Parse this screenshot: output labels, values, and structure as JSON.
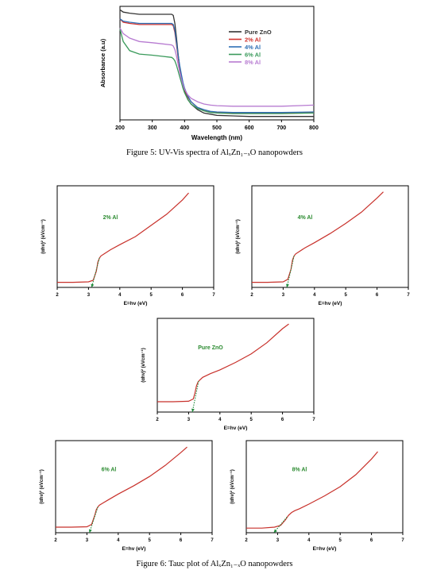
{
  "figure5": {
    "caption": "Figure 5: UV-Vis spectra of AlₓZn₁₋ₓO nanopowders",
    "chart_data": {
      "type": "line",
      "title": "",
      "xlabel": "Wavelength (nm)",
      "ylabel": "Absorbance (a.u)",
      "xlim": [
        200,
        800
      ],
      "ylim": [
        0,
        1
      ],
      "xticks": [
        "200",
        "300",
        "400",
        "500",
        "600",
        "700",
        "800"
      ],
      "grid": false,
      "legend_position": "top-right",
      "x": [
        200,
        210,
        230,
        260,
        300,
        330,
        360,
        365,
        370,
        375,
        380,
        385,
        390,
        395,
        400,
        410,
        420,
        440,
        460,
        480,
        500,
        550,
        600,
        700,
        800
      ],
      "series": [
        {
          "name": "Pure ZnO",
          "color": "#333333",
          "values": [
            0.97,
            0.95,
            0.94,
            0.93,
            0.93,
            0.93,
            0.93,
            0.92,
            0.85,
            0.72,
            0.58,
            0.46,
            0.37,
            0.3,
            0.25,
            0.18,
            0.14,
            0.09,
            0.06,
            0.05,
            0.04,
            0.035,
            0.03,
            0.03,
            0.03
          ]
        },
        {
          "name": "2% Al",
          "color": "#d0312d",
          "values": [
            0.89,
            0.86,
            0.85,
            0.84,
            0.84,
            0.84,
            0.84,
            0.83,
            0.77,
            0.66,
            0.55,
            0.46,
            0.38,
            0.32,
            0.27,
            0.2,
            0.16,
            0.11,
            0.08,
            0.07,
            0.065,
            0.06,
            0.06,
            0.06,
            0.065
          ]
        },
        {
          "name": "4% Al",
          "color": "#2d6fb5",
          "values": [
            0.89,
            0.87,
            0.86,
            0.85,
            0.85,
            0.85,
            0.85,
            0.84,
            0.79,
            0.68,
            0.57,
            0.48,
            0.4,
            0.33,
            0.28,
            0.21,
            0.16,
            0.11,
            0.09,
            0.075,
            0.07,
            0.065,
            0.065,
            0.065,
            0.07
          ]
        },
        {
          "name": "6% Al",
          "color": "#3a9a5b",
          "values": [
            0.8,
            0.69,
            0.61,
            0.58,
            0.57,
            0.56,
            0.55,
            0.54,
            0.52,
            0.48,
            0.43,
            0.38,
            0.33,
            0.28,
            0.24,
            0.18,
            0.14,
            0.1,
            0.08,
            0.065,
            0.06,
            0.055,
            0.055,
            0.055,
            0.06
          ]
        },
        {
          "name": "8% Al",
          "color": "#b77bd1",
          "values": [
            0.81,
            0.76,
            0.72,
            0.69,
            0.68,
            0.67,
            0.66,
            0.65,
            0.62,
            0.56,
            0.49,
            0.42,
            0.36,
            0.31,
            0.27,
            0.22,
            0.19,
            0.16,
            0.14,
            0.13,
            0.125,
            0.12,
            0.12,
            0.12,
            0.13
          ]
        }
      ]
    }
  },
  "figure6": {
    "caption": "Figure 6: Tauc plot of AlₓZn₁₋ₓO nanopowders",
    "chart_data": [
      {
        "type": "line",
        "title": "",
        "annotation": "2% Al",
        "xlabel": "E=hv (eV)",
        "ylabel": "(αhν)² (eVcm⁻¹)",
        "xlim": [
          2,
          7
        ],
        "ylim": [
          0,
          1
        ],
        "xticks": [
          "2",
          "3",
          "4",
          "5",
          "6",
          "7"
        ],
        "line_color": "#c8312b",
        "extrapolation_color": "#1f8a3a",
        "x": [
          2,
          2.5,
          3.0,
          3.15,
          3.25,
          3.3,
          3.35,
          3.4,
          3.5,
          3.7,
          4.0,
          4.5,
          5.0,
          5.5,
          6.0,
          6.2
        ],
        "values": [
          0.05,
          0.05,
          0.055,
          0.07,
          0.16,
          0.25,
          0.29,
          0.31,
          0.33,
          0.37,
          0.42,
          0.5,
          0.61,
          0.72,
          0.86,
          0.93
        ],
        "extrapolation": {
          "x": [
            3.35,
            3.1
          ],
          "values": [
            0.29,
            0.0
          ]
        }
      },
      {
        "type": "line",
        "title": "",
        "annotation": "4% Al",
        "xlabel": "E=hv (eV)",
        "ylabel": "(αhν)² (eVcm⁻¹)",
        "xlim": [
          2,
          7
        ],
        "ylim": [
          0,
          1
        ],
        "xticks": [
          "2",
          "3",
          "4",
          "5",
          "6",
          "7"
        ],
        "line_color": "#c8312b",
        "extrapolation_color": "#1f8a3a",
        "x": [
          2,
          2.5,
          3.0,
          3.15,
          3.25,
          3.3,
          3.35,
          3.4,
          3.5,
          3.7,
          4.0,
          4.5,
          5.0,
          5.5,
          6.0,
          6.2
        ],
        "values": [
          0.05,
          0.05,
          0.055,
          0.08,
          0.18,
          0.27,
          0.31,
          0.33,
          0.35,
          0.39,
          0.44,
          0.53,
          0.63,
          0.74,
          0.88,
          0.94
        ],
        "extrapolation": {
          "x": [
            3.35,
            3.12
          ],
          "values": [
            0.31,
            0.0
          ]
        }
      },
      {
        "type": "line",
        "title": "",
        "annotation": "Pure ZnO",
        "xlabel": "E=hv (eV)",
        "ylabel": "(αhν)² (eVcm⁻¹)",
        "xlim": [
          2,
          7
        ],
        "ylim": [
          0,
          1
        ],
        "xticks": [
          "2",
          "3",
          "4",
          "5",
          "6",
          "7"
        ],
        "line_color": "#c8312b",
        "extrapolation_color": "#1f8a3a",
        "x": [
          2,
          2.5,
          3.0,
          3.15,
          3.2,
          3.25,
          3.3,
          3.35,
          3.45,
          3.7,
          4.0,
          4.5,
          5.0,
          5.5,
          6.0,
          6.2
        ],
        "values": [
          0.11,
          0.11,
          0.115,
          0.14,
          0.2,
          0.28,
          0.32,
          0.34,
          0.37,
          0.41,
          0.45,
          0.53,
          0.62,
          0.74,
          0.89,
          0.94
        ],
        "extrapolation": {
          "x": [
            3.32,
            3.12
          ],
          "values": [
            0.33,
            0.0
          ]
        }
      },
      {
        "type": "line",
        "title": "",
        "annotation": "6% Al",
        "xlabel": "E=hv (eV)",
        "ylabel": "(αhν)² (eVcm⁻¹)",
        "xlim": [
          2,
          7
        ],
        "ylim": [
          0,
          1
        ],
        "xticks": [
          "2",
          "3",
          "4",
          "5",
          "6",
          "7"
        ],
        "line_color": "#c8312b",
        "extrapolation_color": "#1f8a3a",
        "x": [
          2,
          2.5,
          3.0,
          3.15,
          3.25,
          3.3,
          3.35,
          3.4,
          3.5,
          3.7,
          4.0,
          4.5,
          5.0,
          5.5,
          6.0,
          6.2
        ],
        "values": [
          0.06,
          0.06,
          0.065,
          0.09,
          0.19,
          0.25,
          0.28,
          0.3,
          0.32,
          0.36,
          0.42,
          0.51,
          0.61,
          0.73,
          0.87,
          0.93
        ],
        "extrapolation": {
          "x": [
            3.35,
            3.08
          ],
          "values": [
            0.28,
            0.0
          ]
        }
      },
      {
        "type": "line",
        "title": "",
        "annotation": "8% Al",
        "xlabel": "E=hv (eV)",
        "ylabel": "(αhν)² (eVcm⁻¹)",
        "xlim": [
          2,
          7
        ],
        "ylim": [
          0,
          1
        ],
        "xticks": [
          "2",
          "3",
          "4",
          "5",
          "6",
          "7"
        ],
        "line_color": "#c8312b",
        "extrapolation_color": "#1f8a3a",
        "x": [
          2,
          2.5,
          2.9,
          3.1,
          3.25,
          3.35,
          3.45,
          3.55,
          3.7,
          4.0,
          4.5,
          5.0,
          5.5,
          6.0,
          6.2
        ],
        "values": [
          0.05,
          0.05,
          0.06,
          0.08,
          0.14,
          0.19,
          0.22,
          0.24,
          0.26,
          0.31,
          0.4,
          0.5,
          0.63,
          0.8,
          0.88
        ],
        "extrapolation": {
          "x": [
            3.3,
            2.88
          ],
          "values": [
            0.17,
            0.0
          ]
        }
      }
    ]
  }
}
